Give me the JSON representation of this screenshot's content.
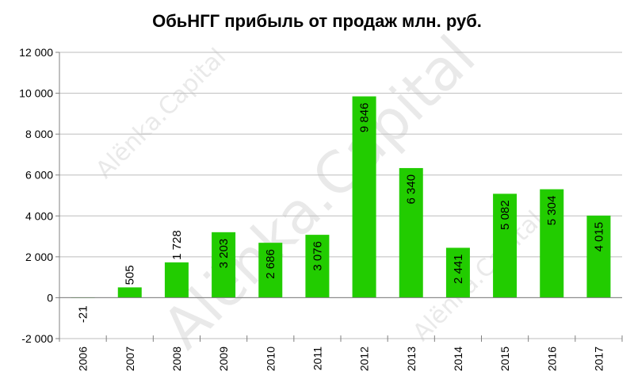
{
  "chart_data": {
    "type": "bar",
    "title": "ОбьНГГ прибыль от продаж млн. руб.",
    "categories": [
      "2006",
      "2007",
      "2008",
      "2009",
      "2010",
      "2011",
      "2012",
      "2013",
      "2014",
      "2015",
      "2016",
      "2017"
    ],
    "series": [
      {
        "values": [
          -21,
          505,
          1728,
          3203,
          2686,
          3076,
          9846,
          6340,
          2441,
          5082,
          5304,
          4015
        ],
        "labels": [
          "-21",
          "505",
          "1 728",
          "3 203",
          "2 686",
          "3 076",
          "9 846",
          "6 340",
          "2 441",
          "5 082",
          "5 304",
          "4 015"
        ]
      }
    ],
    "ylim": [
      -2000,
      12000
    ],
    "yticks": [
      -2000,
      0,
      2000,
      4000,
      6000,
      8000,
      10000,
      12000
    ],
    "ytick_labels": [
      "-2 000",
      "0",
      "2 000",
      "4 000",
      "6 000",
      "8 000",
      "10 000",
      "12 000"
    ],
    "xlabel": "",
    "ylabel": "",
    "grid": "horizontal",
    "legend": "none",
    "bar_color": "#22cc00",
    "watermark": "Alёnka.Capital"
  }
}
